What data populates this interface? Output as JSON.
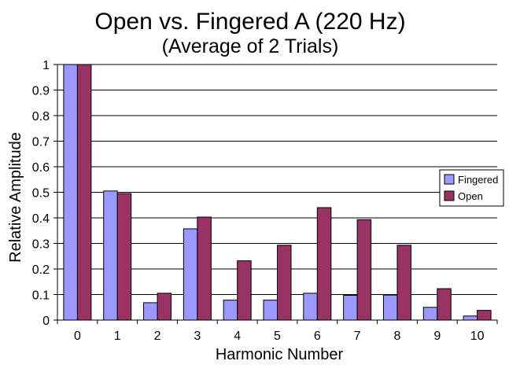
{
  "chart_data": {
    "type": "bar",
    "title": "Open vs. Fingered A (220 Hz)",
    "subtitle": "(Average of 2 Trials)",
    "xlabel": "Harmonic Number",
    "ylabel": "Relative Amplitude",
    "categories": [
      "0",
      "1",
      "2",
      "3",
      "4",
      "5",
      "6",
      "7",
      "8",
      "9",
      "10"
    ],
    "ylim": [
      0,
      1
    ],
    "yticks": [
      "0",
      "0.1",
      "0.2",
      "0.3",
      "0.4",
      "0.5",
      "0.6",
      "0.7",
      "0.8",
      "0.9",
      "1"
    ],
    "grid": true,
    "legend_position": "right",
    "series": [
      {
        "name": "Fingered",
        "color": "#9999ff",
        "values": [
          1.0,
          0.505,
          0.068,
          0.357,
          0.078,
          0.078,
          0.105,
          0.097,
          0.098,
          0.05,
          0.016
        ]
      },
      {
        "name": "Open",
        "color": "#993366",
        "values": [
          1.0,
          0.495,
          0.105,
          0.403,
          0.232,
          0.293,
          0.44,
          0.393,
          0.293,
          0.123,
          0.038
        ]
      }
    ]
  }
}
